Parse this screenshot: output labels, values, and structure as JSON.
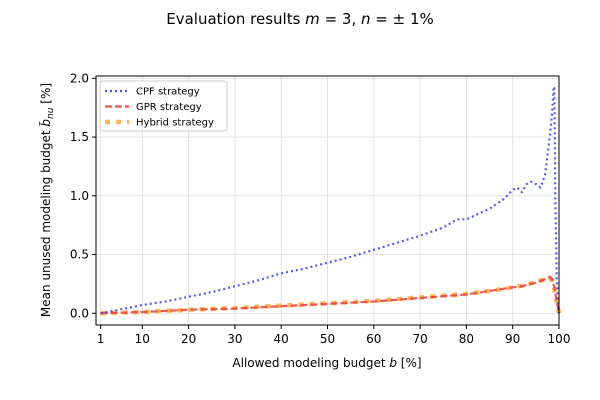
{
  "chart_data": {
    "type": "line",
    "title": "Evaluation results m = 3, n = ± 1%",
    "title_parts": {
      "lead": "Evaluation results ",
      "m_var": "m",
      "m_eq": " = 3, ",
      "n_var": "n",
      "n_eq": " = ± 1%"
    },
    "xlabel": "Allowed modeling budget b [%]",
    "xlabel_parts": {
      "lead": "Allowed modeling budget ",
      "var": "b",
      "unit": " [%]"
    },
    "ylabel": "Mean unused modeling budget b̃nu [%]",
    "ylabel_parts": {
      "lead": "Mean unused modeling budget ",
      "var": "b̃",
      "sub": "nu",
      "unit": " [%]"
    },
    "xlim": [
      0,
      100
    ],
    "ylim": [
      -0.1,
      2.02
    ],
    "xticks": [
      1,
      10,
      20,
      30,
      40,
      50,
      60,
      70,
      80,
      90,
      100
    ],
    "xtick_labels": [
      "1",
      "10",
      "20",
      "30",
      "40",
      "50",
      "60",
      "70",
      "80",
      "90",
      "100"
    ],
    "yticks": [
      0.0,
      0.5,
      1.0,
      1.5,
      2.0
    ],
    "ytick_labels": [
      "0.0",
      "0.5",
      "1.0",
      "1.5",
      "2.0"
    ],
    "grid": true,
    "legend_position": "top-left",
    "series": [
      {
        "name": "CPF strategy",
        "color": "#3b3bf5",
        "style": "dotted",
        "x": [
          1,
          5,
          10,
          15,
          20,
          25,
          30,
          35,
          40,
          45,
          50,
          55,
          60,
          65,
          70,
          75,
          78,
          80,
          85,
          88,
          90,
          91,
          92,
          93,
          94,
          95,
          96,
          97,
          98,
          98.5,
          98.8,
          99,
          99.2,
          99.5,
          100
        ],
        "y": [
          0.0,
          0.03,
          0.07,
          0.1,
          0.14,
          0.18,
          0.23,
          0.28,
          0.34,
          0.38,
          0.43,
          0.48,
          0.54,
          0.6,
          0.66,
          0.73,
          0.8,
          0.8,
          0.89,
          0.97,
          1.05,
          1.07,
          1.03,
          1.1,
          1.12,
          1.1,
          1.07,
          1.18,
          1.5,
          1.7,
          1.9,
          1.93,
          1.0,
          0.3,
          0.0
        ]
      },
      {
        "name": "GPR strategy",
        "color": "#f03a3a",
        "style": "dashed",
        "x": [
          1,
          10,
          20,
          30,
          40,
          50,
          60,
          70,
          80,
          85,
          90,
          92,
          95,
          97,
          98,
          98.5,
          99,
          99.5,
          100
        ],
        "y": [
          0.0,
          0.01,
          0.03,
          0.04,
          0.06,
          0.08,
          0.1,
          0.13,
          0.16,
          0.19,
          0.22,
          0.23,
          0.26,
          0.29,
          0.31,
          0.29,
          0.22,
          0.1,
          0.0
        ]
      },
      {
        "name": "Hybrid strategy",
        "color": "#fbb13d",
        "style": "dashed-thick",
        "x": [
          1,
          10,
          20,
          30,
          40,
          50,
          60,
          70,
          80,
          85,
          90,
          92,
          95,
          97,
          98,
          98.5,
          99,
          99.5,
          100
        ],
        "y": [
          0.0,
          0.01,
          0.03,
          0.045,
          0.065,
          0.085,
          0.105,
          0.135,
          0.165,
          0.19,
          0.22,
          0.235,
          0.265,
          0.29,
          0.3,
          0.28,
          0.2,
          0.1,
          0.0
        ]
      }
    ]
  }
}
